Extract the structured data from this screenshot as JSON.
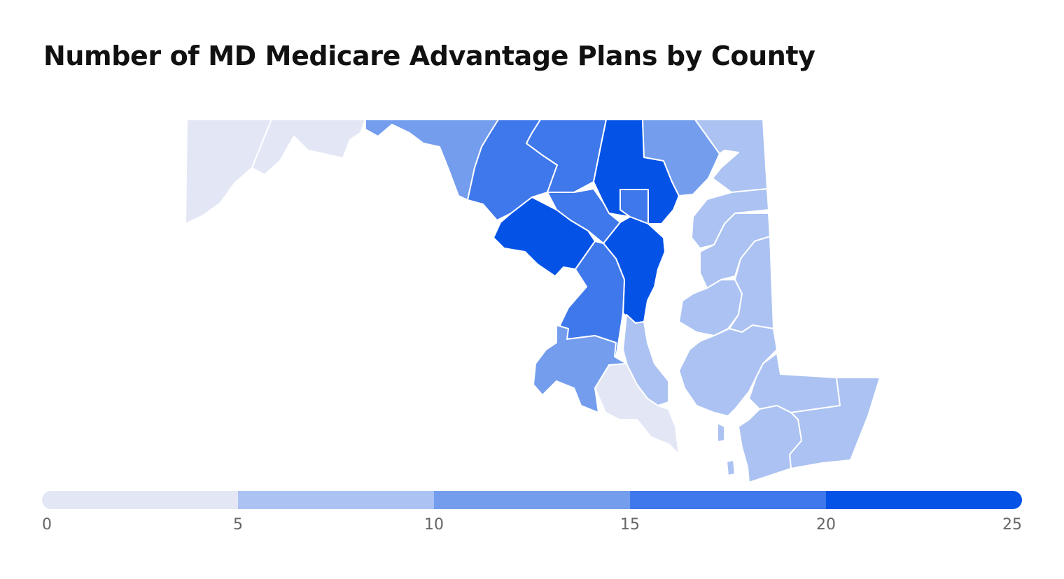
{
  "title": "Number of MD Medicare Advantage Plans by County",
  "chart_data": {
    "type": "choropleth",
    "title": "Number of MD Medicare Advantage Plans by County",
    "legend": {
      "min": 0,
      "max": 25,
      "ticks": [
        "0",
        "5",
        "10",
        "15",
        "20",
        "25"
      ],
      "bins": [
        {
          "range": [
            0,
            5
          ],
          "color": "#e3e7f5"
        },
        {
          "range": [
            5,
            10
          ],
          "color": "#abc2f2"
        },
        {
          "range": [
            10,
            15
          ],
          "color": "#749ded"
        },
        {
          "range": [
            15,
            20
          ],
          "color": "#3f78ea"
        },
        {
          "range": [
            20,
            25
          ],
          "color": "#0453e6"
        }
      ],
      "placement": "bottom"
    },
    "regions": [
      {
        "id": "garrett",
        "bin": 0
      },
      {
        "id": "allegany",
        "bin": 0
      },
      {
        "id": "washington",
        "bin": 2
      },
      {
        "id": "frederick",
        "bin": 3
      },
      {
        "id": "carroll",
        "bin": 3
      },
      {
        "id": "baltimore-county",
        "bin": 4
      },
      {
        "id": "harford",
        "bin": 2
      },
      {
        "id": "cecil",
        "bin": 1
      },
      {
        "id": "baltimore-city",
        "bin": 3
      },
      {
        "id": "howard",
        "bin": 3
      },
      {
        "id": "montgomery",
        "bin": 4
      },
      {
        "id": "anne-arundel",
        "bin": 4
      },
      {
        "id": "prince-georges",
        "bin": 3
      },
      {
        "id": "charles",
        "bin": 2
      },
      {
        "id": "calvert",
        "bin": 1
      },
      {
        "id": "st-marys",
        "bin": 0
      },
      {
        "id": "kent",
        "bin": 1
      },
      {
        "id": "queen-annes",
        "bin": 1
      },
      {
        "id": "talbot",
        "bin": 1
      },
      {
        "id": "caroline",
        "bin": 1
      },
      {
        "id": "dorchester",
        "bin": 1
      },
      {
        "id": "wicomico",
        "bin": 1
      },
      {
        "id": "worcester",
        "bin": 1
      },
      {
        "id": "somerset",
        "bin": 1
      }
    ]
  }
}
